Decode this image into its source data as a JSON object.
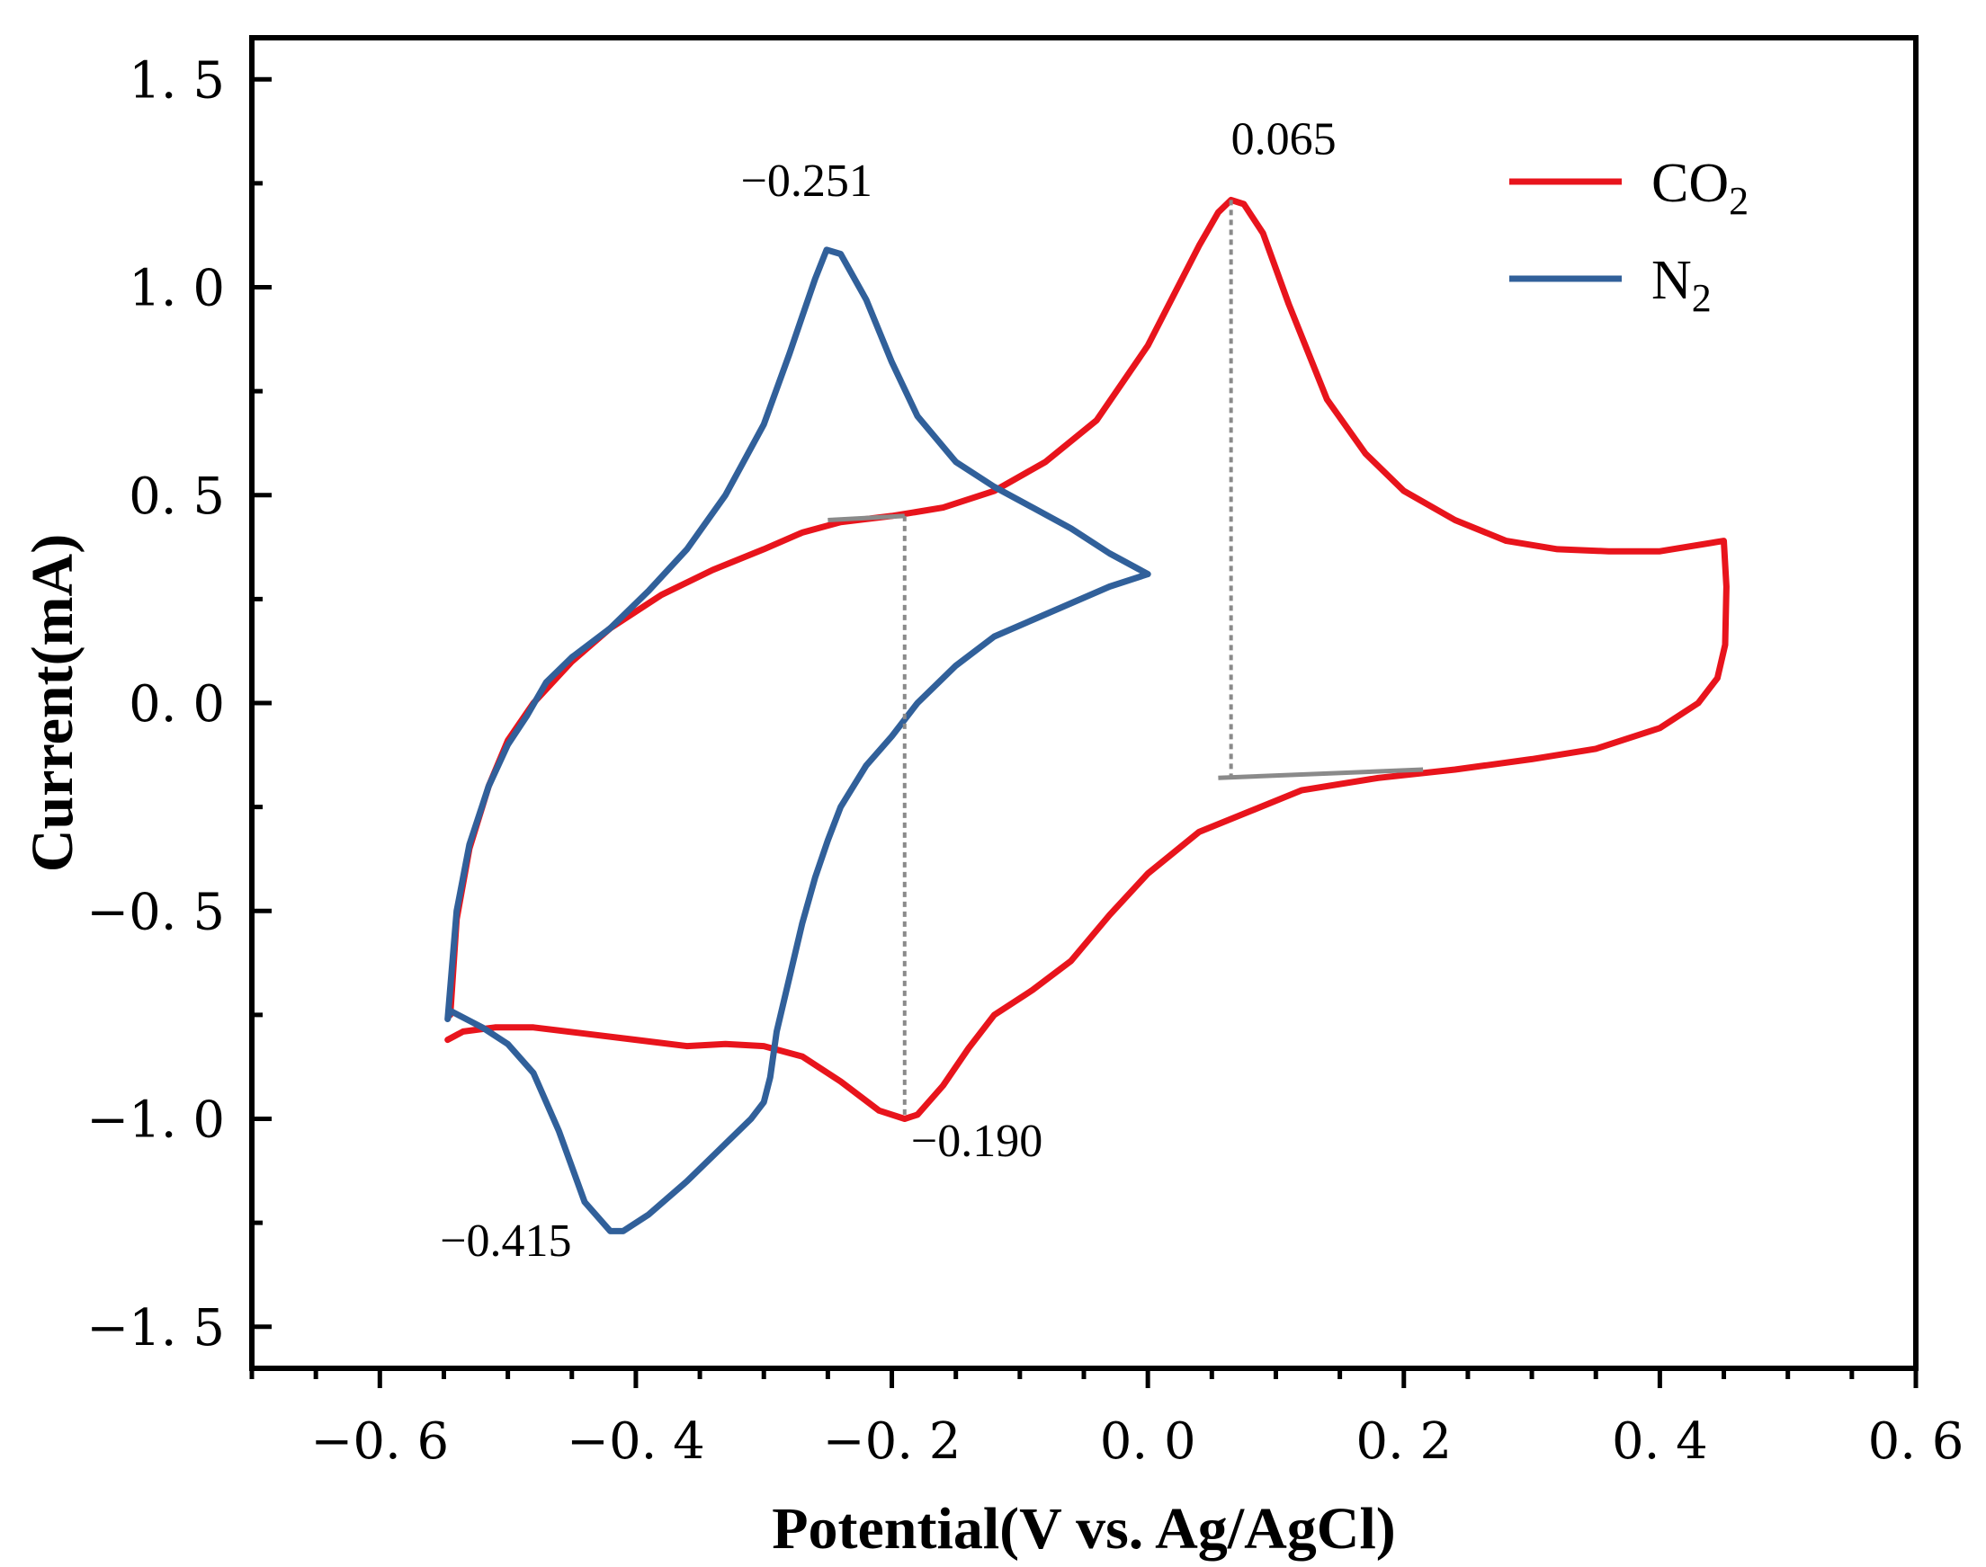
{
  "chart_data": {
    "type": "line",
    "title": "",
    "xlabel": "Potential(V vs. Ag/AgCl)",
    "ylabel": "Current(mA)",
    "xlim": [
      -0.7,
      0.6
    ],
    "ylim": [
      -1.6,
      1.6
    ],
    "x_ticks": [
      -0.6,
      -0.4,
      -0.2,
      0.0,
      0.2,
      0.4,
      0.6
    ],
    "y_ticks": [
      1.5,
      1.0,
      0.5,
      0.0,
      -0.5,
      -1.0,
      -1.5
    ],
    "x_tick_labels": [
      "−0. 6",
      "−0. 4",
      "−0. 2",
      "0. 0",
      "0. 2",
      "0. 4",
      "0. 6"
    ],
    "y_tick_labels": [
      "1. 5",
      "1. 0",
      "0. 5",
      "0. 0",
      "−0. 5",
      "−1. 0",
      "−1. 5"
    ],
    "grid": false,
    "legend_position": "top-right",
    "series": [
      {
        "name": "CO2",
        "label_main": "CO",
        "label_sub": "2",
        "color": "#e8141c",
        "points": [
          [
            -0.545,
            -0.75
          ],
          [
            -0.54,
            -0.52
          ],
          [
            -0.53,
            -0.35
          ],
          [
            -0.515,
            -0.2
          ],
          [
            -0.5,
            -0.09
          ],
          [
            -0.48,
            0.0
          ],
          [
            -0.45,
            0.1
          ],
          [
            -0.42,
            0.18
          ],
          [
            -0.38,
            0.26
          ],
          [
            -0.34,
            0.32
          ],
          [
            -0.3,
            0.37
          ],
          [
            -0.27,
            0.41
          ],
          [
            -0.24,
            0.435
          ],
          [
            -0.2,
            0.45
          ],
          [
            -0.16,
            0.47
          ],
          [
            -0.12,
            0.51
          ],
          [
            -0.08,
            0.58
          ],
          [
            -0.04,
            0.68
          ],
          [
            0.0,
            0.86
          ],
          [
            0.02,
            0.98
          ],
          [
            0.04,
            1.1
          ],
          [
            0.055,
            1.18
          ],
          [
            0.065,
            1.21
          ],
          [
            0.075,
            1.2
          ],
          [
            0.09,
            1.13
          ],
          [
            0.11,
            0.96
          ],
          [
            0.14,
            0.73
          ],
          [
            0.17,
            0.6
          ],
          [
            0.2,
            0.51
          ],
          [
            0.24,
            0.44
          ],
          [
            0.28,
            0.39
          ],
          [
            0.32,
            0.37
          ],
          [
            0.36,
            0.365
          ],
          [
            0.4,
            0.365
          ],
          [
            0.45,
            0.39
          ],
          [
            0.452,
            0.28
          ],
          [
            0.451,
            0.14
          ],
          [
            0.445,
            0.06
          ],
          [
            0.43,
            0.0
          ],
          [
            0.4,
            -0.06
          ],
          [
            0.35,
            -0.11
          ],
          [
            0.3,
            -0.135
          ],
          [
            0.24,
            -0.16
          ],
          [
            0.18,
            -0.18
          ],
          [
            0.12,
            -0.21
          ],
          [
            0.08,
            -0.26
          ],
          [
            0.04,
            -0.31
          ],
          [
            0.0,
            -0.41
          ],
          [
            -0.03,
            -0.51
          ],
          [
            -0.06,
            -0.62
          ],
          [
            -0.09,
            -0.69
          ],
          [
            -0.12,
            -0.75
          ],
          [
            -0.14,
            -0.83
          ],
          [
            -0.16,
            -0.92
          ],
          [
            -0.18,
            -0.99
          ],
          [
            -0.19,
            -1.0
          ],
          [
            -0.21,
            -0.98
          ],
          [
            -0.24,
            -0.91
          ],
          [
            -0.27,
            -0.85
          ],
          [
            -0.3,
            -0.825
          ],
          [
            -0.33,
            -0.82
          ],
          [
            -0.36,
            -0.825
          ],
          [
            -0.4,
            -0.81
          ],
          [
            -0.44,
            -0.795
          ],
          [
            -0.48,
            -0.78
          ],
          [
            -0.51,
            -0.78
          ],
          [
            -0.535,
            -0.79
          ],
          [
            -0.547,
            -0.81
          ]
        ]
      },
      {
        "name": "N2",
        "label_main": "N",
        "label_sub": "2",
        "color": "#31609a",
        "points": [
          [
            0.0,
            0.31
          ],
          [
            -0.03,
            0.28
          ],
          [
            -0.06,
            0.24
          ],
          [
            -0.09,
            0.2
          ],
          [
            -0.12,
            0.16
          ],
          [
            -0.15,
            0.09
          ],
          [
            -0.18,
            0.0
          ],
          [
            -0.2,
            -0.08
          ],
          [
            -0.22,
            -0.15
          ],
          [
            -0.24,
            -0.25
          ],
          [
            -0.25,
            -0.33
          ],
          [
            -0.26,
            -0.42
          ],
          [
            -0.27,
            -0.53
          ],
          [
            -0.28,
            -0.66
          ],
          [
            -0.29,
            -0.79
          ],
          [
            -0.295,
            -0.9
          ],
          [
            -0.3,
            -0.96
          ],
          [
            -0.31,
            -1.0
          ],
          [
            -0.33,
            -1.06
          ],
          [
            -0.36,
            -1.15
          ],
          [
            -0.39,
            -1.23
          ],
          [
            -0.41,
            -1.27
          ],
          [
            -0.42,
            -1.27
          ],
          [
            -0.44,
            -1.2
          ],
          [
            -0.46,
            -1.03
          ],
          [
            -0.48,
            -0.89
          ],
          [
            -0.5,
            -0.82
          ],
          [
            -0.52,
            -0.78
          ],
          [
            -0.545,
            -0.74
          ],
          [
            -0.547,
            -0.76
          ],
          [
            -0.54,
            -0.5
          ],
          [
            -0.53,
            -0.34
          ],
          [
            -0.515,
            -0.2
          ],
          [
            -0.5,
            -0.1
          ],
          [
            -0.485,
            -0.03
          ],
          [
            -0.47,
            0.05
          ],
          [
            -0.45,
            0.11
          ],
          [
            -0.42,
            0.18
          ],
          [
            -0.39,
            0.27
          ],
          [
            -0.36,
            0.37
          ],
          [
            -0.33,
            0.5
          ],
          [
            -0.3,
            0.67
          ],
          [
            -0.28,
            0.84
          ],
          [
            -0.27,
            0.93
          ],
          [
            -0.26,
            1.02
          ],
          [
            -0.251,
            1.09
          ],
          [
            -0.24,
            1.08
          ],
          [
            -0.22,
            0.97
          ],
          [
            -0.2,
            0.82
          ],
          [
            -0.18,
            0.69
          ],
          [
            -0.15,
            0.58
          ],
          [
            -0.12,
            0.52
          ],
          [
            -0.09,
            0.47
          ],
          [
            -0.06,
            0.42
          ],
          [
            -0.03,
            0.36
          ],
          [
            0.0,
            0.31
          ]
        ]
      }
    ],
    "annotations": [
      {
        "text": "0.065",
        "at": [
          0.065,
          1.32
        ]
      },
      {
        "text": "−0.251",
        "at": [
          -0.318,
          1.22
        ]
      },
      {
        "text": "−0.190",
        "at": [
          -0.185,
          -1.09
        ]
      },
      {
        "text": "−0.415",
        "at": [
          -0.553,
          -1.33
        ]
      }
    ],
    "baselines": [
      {
        "color": "#8a8a8a",
        "points": [
          [
            -0.25,
            0.44
          ],
          [
            -0.19,
            0.45
          ]
        ]
      },
      {
        "color": "#8a8a8a",
        "points": [
          [
            0.055,
            -0.18
          ],
          [
            0.215,
            -0.16
          ]
        ]
      }
    ],
    "dropLines": [
      {
        "color": "#8a8a8a",
        "points": [
          [
            0.065,
            1.21
          ],
          [
            0.065,
            -0.18
          ]
        ]
      },
      {
        "color": "#8a8a8a",
        "points": [
          [
            -0.19,
            0.45
          ],
          [
            -0.19,
            -1.0
          ]
        ]
      }
    ]
  }
}
